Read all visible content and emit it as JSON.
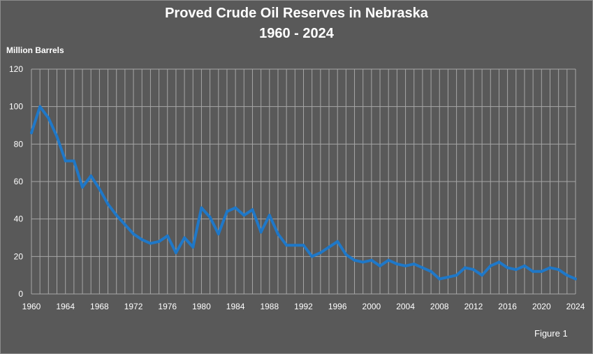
{
  "colors": {
    "background": "#595959",
    "grid": "#a6a6a6",
    "line": "#1f78c8",
    "text": "#ffffff"
  },
  "figure_label": "Figure 1",
  "chart_data": {
    "type": "line",
    "title": "Proved Crude Oil Reserves in Nebraska",
    "subtitle": "1960 - 2024",
    "xlabel": "",
    "ylabel": "Million Barrels",
    "xlim": [
      1960,
      2024
    ],
    "ylim": [
      0,
      120
    ],
    "x_ticks": [
      1960,
      1964,
      1968,
      1972,
      1976,
      1980,
      1984,
      1988,
      1992,
      1996,
      2000,
      2004,
      2008,
      2012,
      2016,
      2020,
      2024
    ],
    "y_ticks": [
      0,
      20,
      40,
      60,
      80,
      100,
      120
    ],
    "grid": true,
    "series": [
      {
        "x": [
          1960,
          1961,
          1962,
          1963,
          1964,
          1965,
          1966,
          1967,
          1968,
          1969,
          1970,
          1971,
          1972,
          1973,
          1974,
          1975,
          1976,
          1977,
          1978,
          1979,
          1980,
          1981,
          1982,
          1983,
          1984,
          1985,
          1986,
          1987,
          1988,
          1989,
          1990,
          1991,
          1992,
          1993,
          1994,
          1995,
          1996,
          1997,
          1998,
          1999,
          2000,
          2001,
          2002,
          2003,
          2004,
          2005,
          2006,
          2007,
          2008,
          2009,
          2010,
          2011,
          2012,
          2013,
          2014,
          2015,
          2016,
          2017,
          2018,
          2019,
          2020,
          2021,
          2022,
          2023,
          2024
        ],
        "values": [
          86,
          100,
          94,
          84,
          71,
          71,
          57,
          63,
          56,
          48,
          42,
          37,
          32,
          29,
          27,
          28,
          31,
          22,
          30,
          25,
          46,
          41,
          32,
          44,
          46,
          42,
          45,
          33,
          42,
          32,
          26,
          26,
          26,
          20,
          22,
          25,
          28,
          21,
          18,
          17,
          18,
          15,
          18,
          16,
          15,
          16,
          14,
          12,
          8,
          9,
          10,
          14,
          13,
          10,
          15,
          17,
          14,
          13,
          15,
          12,
          12,
          14,
          13,
          10,
          8
        ]
      }
    ]
  }
}
